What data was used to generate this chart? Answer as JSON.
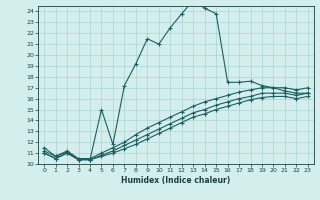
{
  "xlabel": "Humidex (Indice chaleur)",
  "bg_color": "#d4eeee",
  "grid_color": "#aad4d4",
  "line_color": "#1a6060",
  "xlim": [
    -0.5,
    23.5
  ],
  "ylim": [
    10,
    24.5
  ],
  "xticks": [
    0,
    1,
    2,
    3,
    4,
    5,
    6,
    7,
    8,
    9,
    10,
    11,
    12,
    13,
    14,
    15,
    16,
    17,
    18,
    19,
    20,
    21,
    22,
    23
  ],
  "yticks": [
    10,
    11,
    12,
    13,
    14,
    15,
    16,
    17,
    18,
    19,
    20,
    21,
    22,
    23,
    24
  ],
  "line1_x": [
    0,
    1,
    2,
    3,
    4,
    5,
    6,
    7,
    8,
    9,
    10,
    11,
    12,
    13,
    14,
    15,
    16,
    17,
    18,
    19,
    20,
    21,
    22,
    23
  ],
  "line1_y": [
    11.5,
    10.7,
    11.1,
    10.4,
    10.4,
    15.0,
    11.8,
    17.2,
    19.2,
    21.5,
    21.0,
    22.5,
    23.8,
    25.0,
    24.3,
    23.8,
    17.5,
    17.5,
    17.6,
    17.2,
    17.0,
    16.7,
    16.5,
    16.5
  ],
  "line2_x": [
    0,
    1,
    2,
    3,
    4,
    5,
    6,
    7,
    8,
    9,
    10,
    11,
    12,
    13,
    14,
    15,
    16,
    17,
    18,
    19,
    20,
    21,
    22,
    23
  ],
  "line2_y": [
    11.2,
    10.7,
    11.2,
    10.5,
    10.5,
    11.0,
    11.5,
    12.0,
    12.7,
    13.3,
    13.8,
    14.3,
    14.8,
    15.3,
    15.7,
    16.0,
    16.3,
    16.6,
    16.8,
    17.0,
    17.0,
    17.0,
    16.8,
    17.0
  ],
  "line3_x": [
    0,
    1,
    2,
    3,
    4,
    5,
    6,
    7,
    8,
    9,
    10,
    11,
    12,
    13,
    14,
    15,
    16,
    17,
    18,
    19,
    20,
    21,
    22,
    23
  ],
  "line3_y": [
    11.0,
    10.5,
    11.0,
    10.4,
    10.4,
    10.8,
    11.2,
    11.7,
    12.2,
    12.7,
    13.2,
    13.7,
    14.2,
    14.7,
    15.0,
    15.4,
    15.7,
    16.0,
    16.2,
    16.5,
    16.5,
    16.5,
    16.3,
    16.5
  ],
  "line4_x": [
    0,
    1,
    2,
    3,
    4,
    5,
    6,
    7,
    8,
    9,
    10,
    11,
    12,
    13,
    14,
    15,
    16,
    17,
    18,
    19,
    20,
    21,
    22,
    23
  ],
  "line4_y": [
    11.0,
    10.5,
    11.0,
    10.4,
    10.4,
    10.7,
    11.0,
    11.4,
    11.8,
    12.3,
    12.8,
    13.3,
    13.8,
    14.3,
    14.6,
    15.0,
    15.3,
    15.6,
    15.9,
    16.1,
    16.2,
    16.2,
    16.0,
    16.2
  ]
}
